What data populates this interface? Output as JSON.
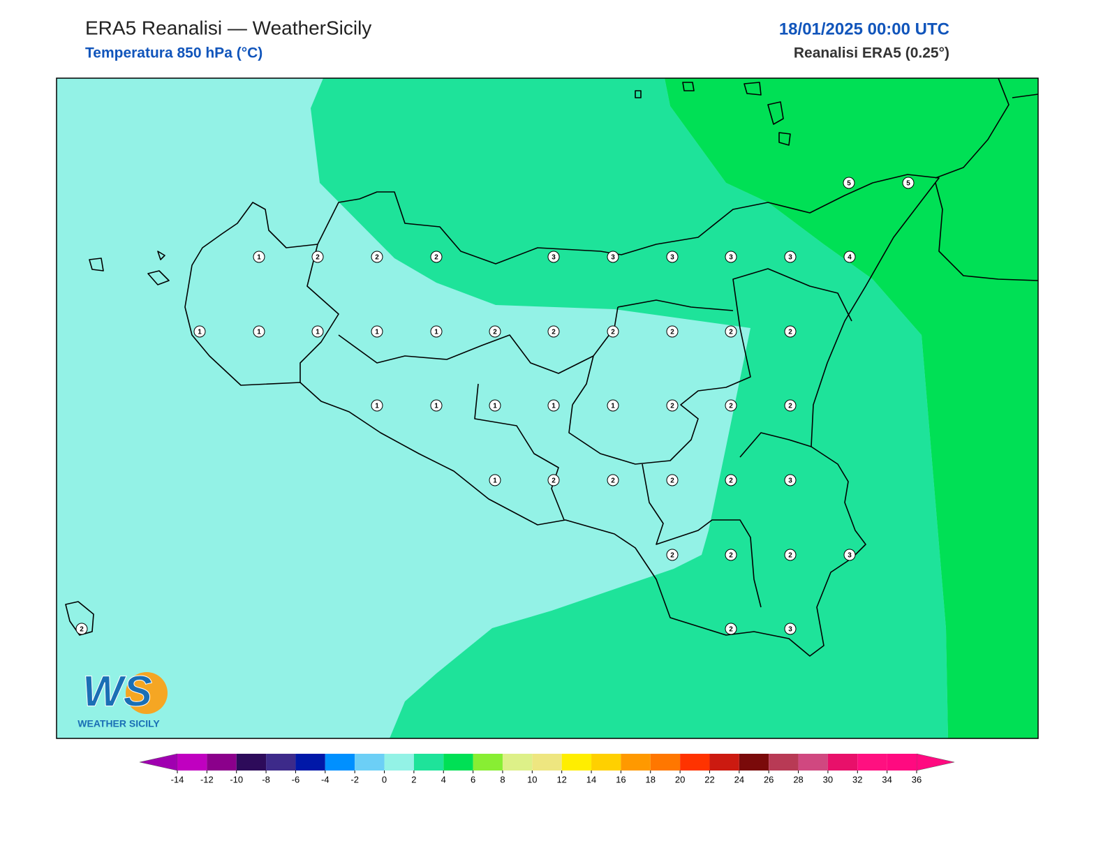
{
  "header": {
    "title": "ERA5 Reanalisi — WeatherSicily",
    "subtitle": "Temperatura 850 hPa (°C)",
    "datetime": "18/01/2025 00:00 UTC",
    "source": "Reanalisi ERA5 (0.25°)"
  },
  "map": {
    "points": [
      1,
      2,
      2,
      2,
      3,
      3,
      3,
      3,
      3,
      4,
      5,
      5,
      1,
      1,
      1,
      1,
      1,
      2,
      2,
      2,
      2,
      2,
      2,
      1,
      1,
      1,
      1,
      1,
      2,
      2,
      2,
      1,
      2,
      2,
      2,
      2,
      3,
      2,
      2,
      2,
      3,
      2,
      2,
      3
    ]
  },
  "logo": {
    "letters": "WS",
    "text": "WEATHER SICILY"
  },
  "colorbar": {
    "ticks": [
      -14,
      -12,
      -10,
      -8,
      -6,
      -4,
      -2,
      0,
      2,
      4,
      6,
      8,
      10,
      12,
      14,
      16,
      18,
      20,
      22,
      24,
      26,
      28,
      30,
      32,
      34,
      36
    ],
    "colors": [
      "#c000c0",
      "#8b008b",
      "#2d0b5a",
      "#3d2a8a",
      "#0018a8",
      "#0090ff",
      "#6ccff6",
      "#93f2e6",
      "#1ee39a",
      "#00e055",
      "#88ee33",
      "#ddf088",
      "#eee680",
      "#ffee00",
      "#ffd000",
      "#ff9900",
      "#ff7700",
      "#ff3300",
      "#cc1a10",
      "#7a0a0a",
      "#b83a55",
      "#d04880",
      "#e8106a",
      "#ff1080",
      "#ff0a80"
    ],
    "under": "#a000b0",
    "over": "#ff0a80"
  }
}
